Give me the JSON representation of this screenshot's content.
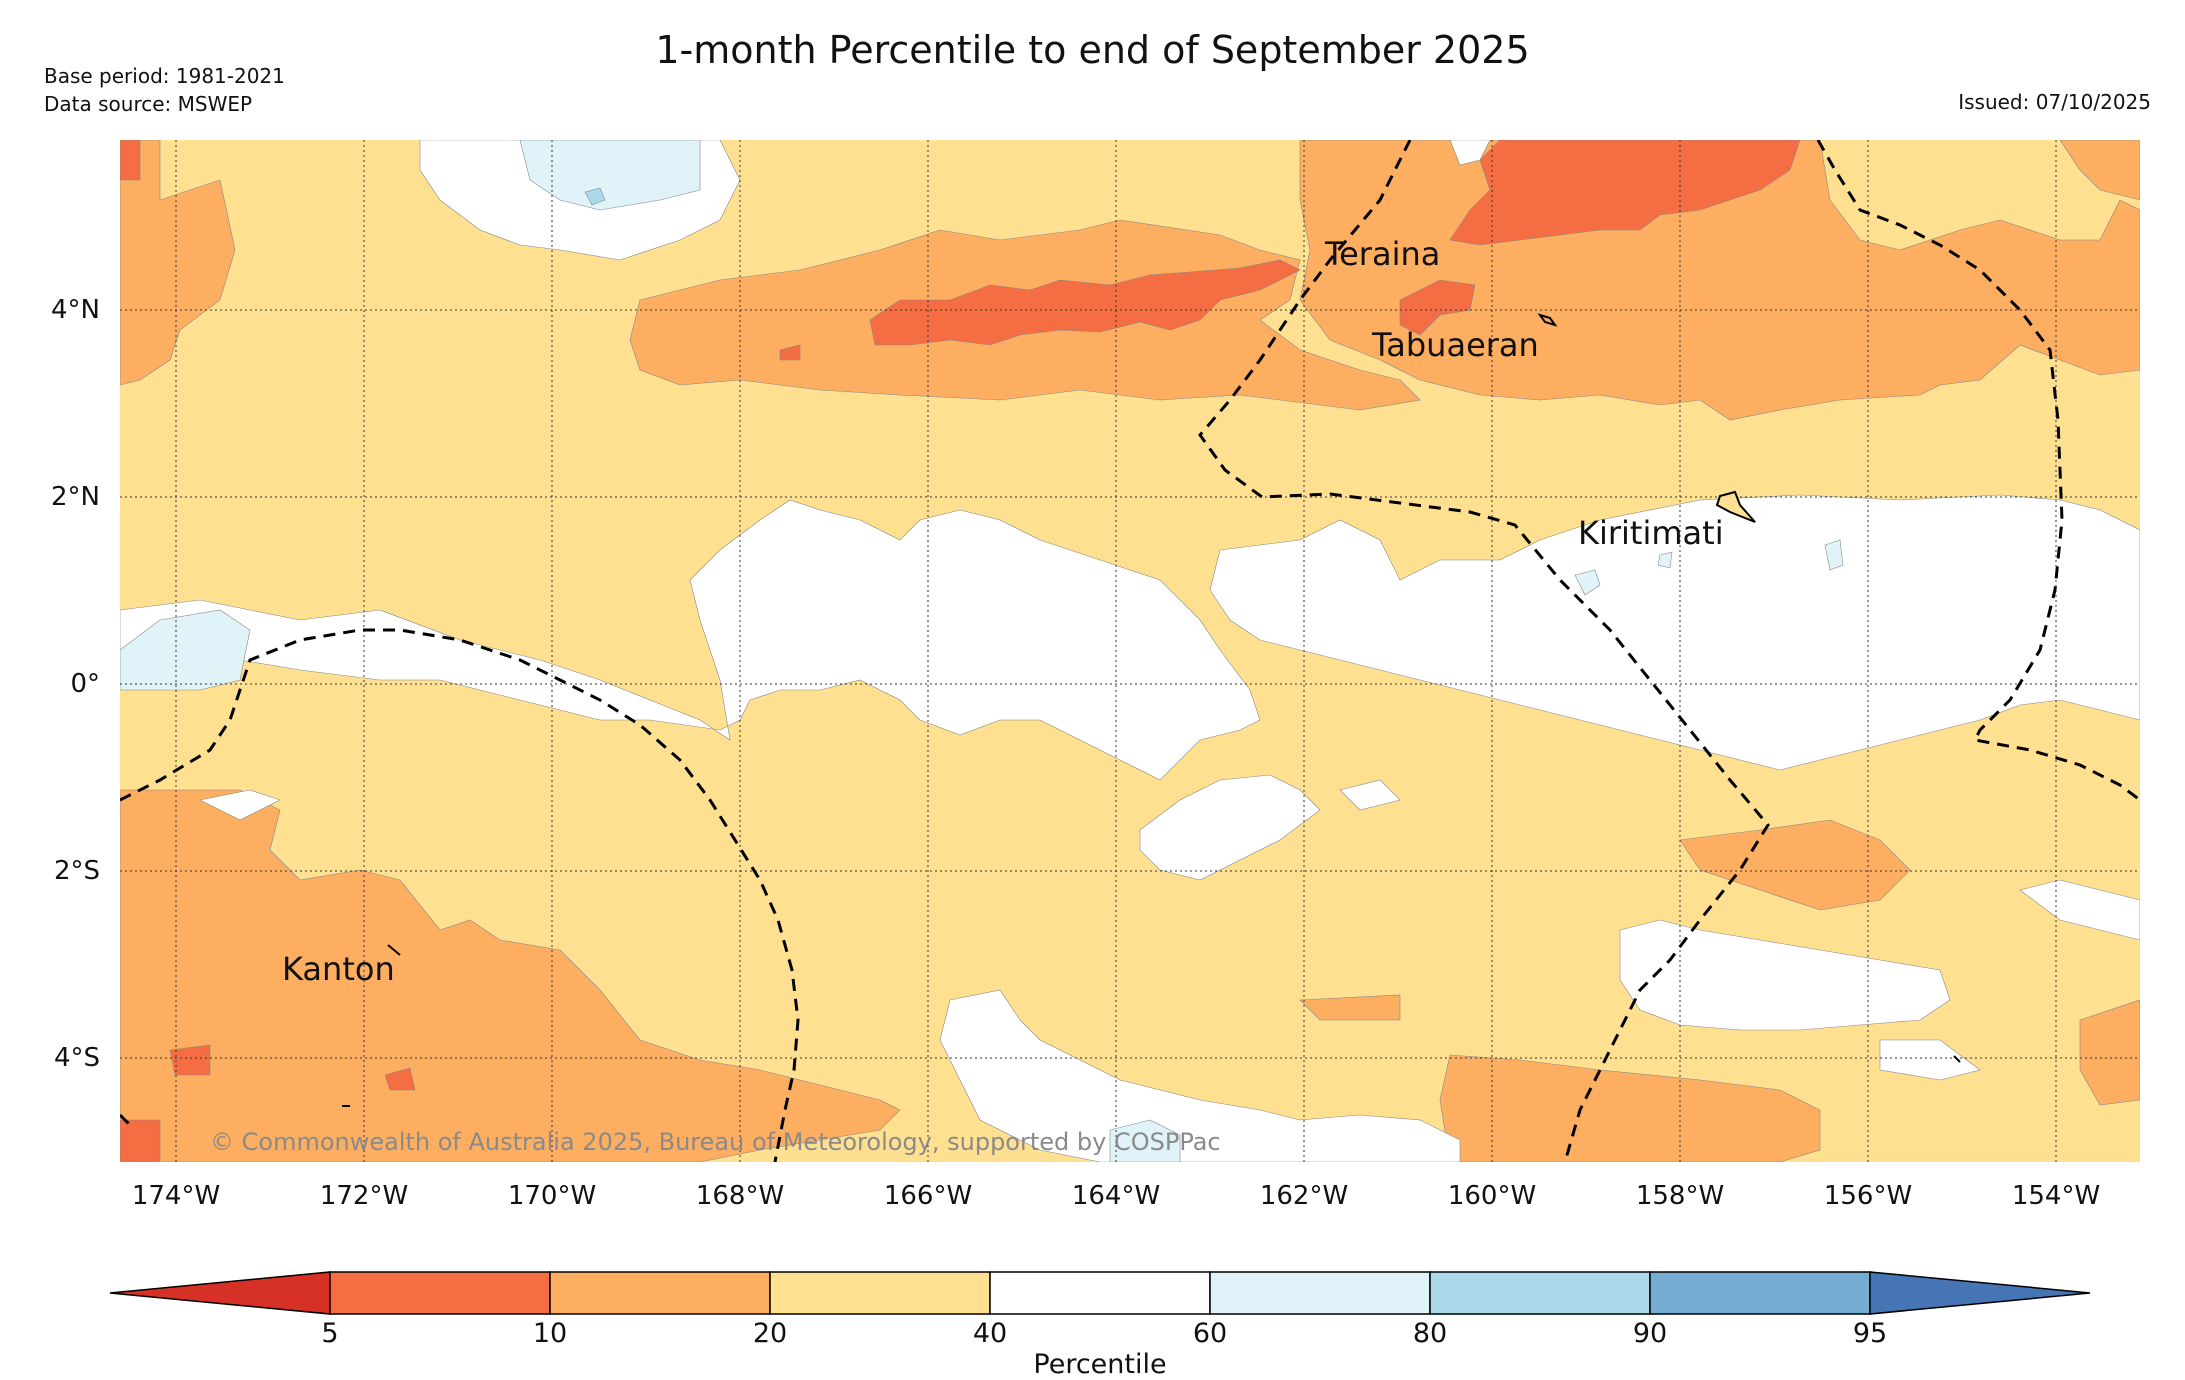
{
  "title": "1-month Percentile to end of September 2025",
  "meta": {
    "base_period": "Base period: 1981-2021",
    "data_source": "Data source: MSWEP",
    "issued": "Issued: 07/10/2025"
  },
  "map": {
    "lon_ticks": [
      "174°W",
      "172°W",
      "170°W",
      "168°W",
      "166°W",
      "164°W",
      "162°W",
      "160°W",
      "158°W",
      "156°W",
      "154°W"
    ],
    "lat_ticks": [
      "4°N",
      "2°N",
      "0°",
      "2°S",
      "4°S"
    ],
    "places": {
      "teraina": "Teraina",
      "tabuaeran": "Tabuaeran",
      "kiritimati": "Kiritimati",
      "kanton": "Kanton"
    },
    "copyright": "© Commonwealth of Australia 2025, Bureau of Meteorology, supported by COSPPac"
  },
  "colorbar": {
    "label": "Percentile",
    "ticks": [
      "5",
      "10",
      "20",
      "40",
      "60",
      "80",
      "90",
      "95"
    ],
    "colors": {
      "below5": "#d73027",
      "c5_10": "#f46d43",
      "c10_20": "#fdae61",
      "c20_40": "#fee090",
      "c40_60": "#ffffff",
      "c60_80": "#e0f3f8",
      "c80_90": "#abd9e9",
      "c90_95": "#74add1",
      "above95": "#4575b4"
    }
  }
}
